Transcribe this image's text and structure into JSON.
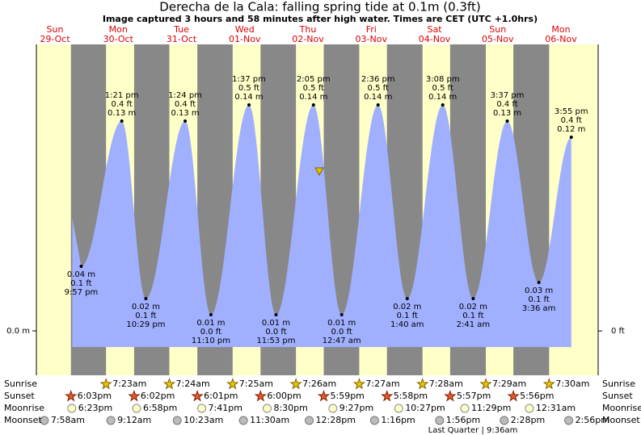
{
  "chart_data": {
    "type": "area",
    "title": "Derecha de la Cala: falling  spring tide at 0.1m (0.3ft)",
    "subtitle": "Image captured 3 hours and 58 minutes after high water. Times are CET (UTC +1.0hrs)",
    "color": "#a0b0ff",
    "ylim": [
      -0.0275,
      0.1775
    ],
    "y2lim": [
      -0.09,
      0.582
    ],
    "yticks": [
      {
        "value": 0,
        "label": "0.0 m"
      }
    ],
    "y2ticks": [
      {
        "value": 0,
        "label": "0 ft"
      }
    ],
    "row_labels": {
      "sunrise": "Sunrise",
      "sunset": "Sunset",
      "moonrise": "Moonrise",
      "moonset": "Moonset"
    },
    "moon_phase": "Last Quarter | 9:36am",
    "days": [
      {
        "name": "Sun",
        "date": "29-Oct",
        "tides": [
          {
            "time": "9:57 pm",
            "m": {
              "value": 0.04,
              "label": "0.04 m"
            },
            "ft": {
              "value": 0.1,
              "label": "0.1 ft"
            }
          }
        ],
        "sunset": "6:03pm",
        "moonrise": "6:23pm",
        "moonset": "7:58am"
      },
      {
        "name": "Mon",
        "date": "30-Oct",
        "tides": [
          {
            "time": "1:21 pm",
            "m": {
              "value": 0.13,
              "label": "0.13 m"
            },
            "ft": {
              "value": 0.4,
              "label": "0.4 ft"
            }
          },
          {
            "time": "10:29 pm",
            "m": {
              "value": 0.02,
              "label": "0.02 m"
            },
            "ft": {
              "value": 0.1,
              "label": "0.1 ft"
            }
          }
        ],
        "sunrise": "7:23am",
        "sunset": "6:02pm",
        "moonrise": "6:58pm",
        "moonset": "9:12am"
      },
      {
        "name": "Tue",
        "date": "31-Oct",
        "tides": [
          {
            "time": "1:24 pm",
            "m": {
              "value": 0.13,
              "label": "0.13 m"
            },
            "ft": {
              "value": 0.4,
              "label": "0.4 ft"
            }
          },
          {
            "time": "11:10 pm",
            "m": {
              "value": 0.01,
              "label": "0.01 m"
            },
            "ft": {
              "value": 0,
              "label": "0.0 ft"
            }
          }
        ],
        "sunrise": "7:24am",
        "sunset": "6:01pm",
        "moonrise": "7:41pm",
        "moonset": "10:23am"
      },
      {
        "name": "Wed",
        "date": "01-Nov",
        "tides": [
          {
            "time": "1:37 pm",
            "m": {
              "value": 0.14,
              "label": "0.14 m"
            },
            "ft": {
              "value": 0.5,
              "label": "0.5 ft"
            }
          },
          {
            "time": "11:53 pm",
            "m": {
              "value": 0.01,
              "label": "0.01 m"
            },
            "ft": {
              "value": 0,
              "label": "0.0 ft"
            }
          }
        ],
        "sunrise": "7:25am",
        "sunset": "6:00pm",
        "moonrise": "8:30pm",
        "moonset": "11:30am"
      },
      {
        "name": "Thu",
        "date": "02-Nov",
        "tides": [
          {
            "time": "2:05 pm",
            "m": {
              "value": 0.14,
              "label": "0.14 m"
            },
            "ft": {
              "value": 0.5,
              "label": "0.5 ft"
            }
          }
        ],
        "sunrise": "7:26am",
        "sunset": "5:59pm",
        "moonrise": "9:27pm",
        "moonset": "12:28pm"
      },
      {
        "name": "Fri",
        "date": "03-Nov",
        "tides": [
          {
            "time": "12:47 am",
            "m": {
              "value": 0.01,
              "label": "0.01 m"
            },
            "ft": {
              "value": 0,
              "label": "0.0 ft"
            }
          },
          {
            "time": "2:36 pm",
            "m": {
              "value": 0.14,
              "label": "0.14 m"
            },
            "ft": {
              "value": 0.5,
              "label": "0.5 ft"
            }
          }
        ],
        "sunrise": "7:27am",
        "sunset": "5:58pm",
        "moonrise": "10:27pm",
        "moonset": "1:16pm"
      },
      {
        "name": "Sat",
        "date": "04-Nov",
        "tides": [
          {
            "time": "1:40 am",
            "m": {
              "value": 0.02,
              "label": "0.02 m"
            },
            "ft": {
              "value": 0.1,
              "label": "0.1 ft"
            }
          },
          {
            "time": "3:08 pm",
            "m": {
              "value": 0.14,
              "label": "0.14 m"
            },
            "ft": {
              "value": 0.5,
              "label": "0.5 ft"
            }
          }
        ],
        "sunrise": "7:28am",
        "sunset": "5:57pm",
        "moonrise": "11:29pm",
        "moonset": "1:56pm"
      },
      {
        "name": "Sun",
        "date": "05-Nov",
        "tides": [
          {
            "time": "2:41 am",
            "m": {
              "value": 0.02,
              "label": "0.02 m"
            },
            "ft": {
              "value": 0.1,
              "label": "0.1 ft"
            }
          },
          {
            "time": "3:37 pm",
            "m": {
              "value": 0.13,
              "label": "0.13 m"
            },
            "ft": {
              "value": 0.4,
              "label": "0.4 ft"
            }
          }
        ],
        "sunrise": "7:29am",
        "sunset": "5:56pm",
        "moonset": "2:28pm"
      },
      {
        "name": "Mon",
        "date": "06-Nov",
        "tides": [
          {
            "time": "3:36 am",
            "m": {
              "value": 0.03,
              "label": "0.03 m"
            },
            "ft": {
              "value": 0.1,
              "label": "0.1 ft"
            }
          },
          {
            "time": "3:55 pm",
            "m": {
              "value": 0.12,
              "label": "0.12 m"
            },
            "ft": {
              "value": 0.4,
              "label": "0.4 ft"
            }
          }
        ],
        "sunrise": "7:30am",
        "moonrise": "12:31am",
        "moonset": "2:56pm"
      }
    ]
  }
}
